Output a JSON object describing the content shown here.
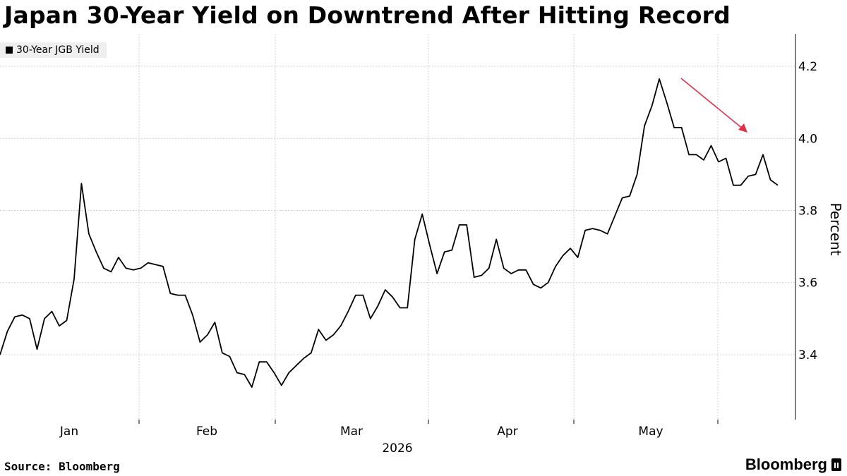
{
  "colors": {
    "line": "#000000",
    "grid": "#d0d0d0",
    "arrow": "#e0304a",
    "legend_bg": "#efefef"
  },
  "footer": {
    "source": "Source: Bloomberg",
    "brand": "Bloomberg",
    "brand_icon": "bloomberg-b-icon"
  },
  "chart_data": {
    "type": "line",
    "title": "Japan 30-Year Yield on Downtrend After Hitting Record",
    "ylabel": "Percent",
    "xlabel": "2026",
    "ylim": [
      3.22,
      4.29
    ],
    "y_ticks": [
      3.4,
      3.6,
      3.8,
      4.0,
      4.2
    ],
    "y_tick_labels": [
      "3.4",
      "3.6",
      "3.8",
      "4.0",
      "4.2"
    ],
    "x_tick_labels": [
      "Jan",
      "Feb",
      "Mar",
      "Apr",
      "May"
    ],
    "grid": true,
    "legend_position": "top-left",
    "annotation": "red downward arrow pointing to the decline after the record high",
    "series": [
      {
        "name": "30-Year JGB Yield",
        "values": [
          3.4,
          3.465,
          3.505,
          3.51,
          3.5,
          3.415,
          3.5,
          3.52,
          3.48,
          3.495,
          3.61,
          3.875,
          3.735,
          3.685,
          3.64,
          3.63,
          3.67,
          3.64,
          3.635,
          3.64,
          3.655,
          3.65,
          3.645,
          3.57,
          3.565,
          3.565,
          3.51,
          3.435,
          3.455,
          3.49,
          3.405,
          3.395,
          3.35,
          3.345,
          3.31,
          3.38,
          3.38,
          3.35,
          3.315,
          3.35,
          3.37,
          3.39,
          3.405,
          3.47,
          3.44,
          3.455,
          3.48,
          3.52,
          3.565,
          3.565,
          3.5,
          3.535,
          3.58,
          3.56,
          3.53,
          3.53,
          3.72,
          3.79,
          3.705,
          3.625,
          3.685,
          3.69,
          3.76,
          3.76,
          3.615,
          3.62,
          3.64,
          3.72,
          3.64,
          3.625,
          3.635,
          3.635,
          3.595,
          3.585,
          3.6,
          3.645,
          3.675,
          3.695,
          3.67,
          3.745,
          3.75,
          3.745,
          3.735,
          3.785,
          3.835,
          3.84,
          3.9,
          4.035,
          4.09,
          4.165,
          4.1,
          4.03,
          4.03,
          3.955,
          3.955,
          3.94,
          3.98,
          3.935,
          3.945,
          3.87,
          3.87,
          3.895,
          3.9,
          3.955,
          3.885,
          3.87
        ]
      }
    ]
  }
}
